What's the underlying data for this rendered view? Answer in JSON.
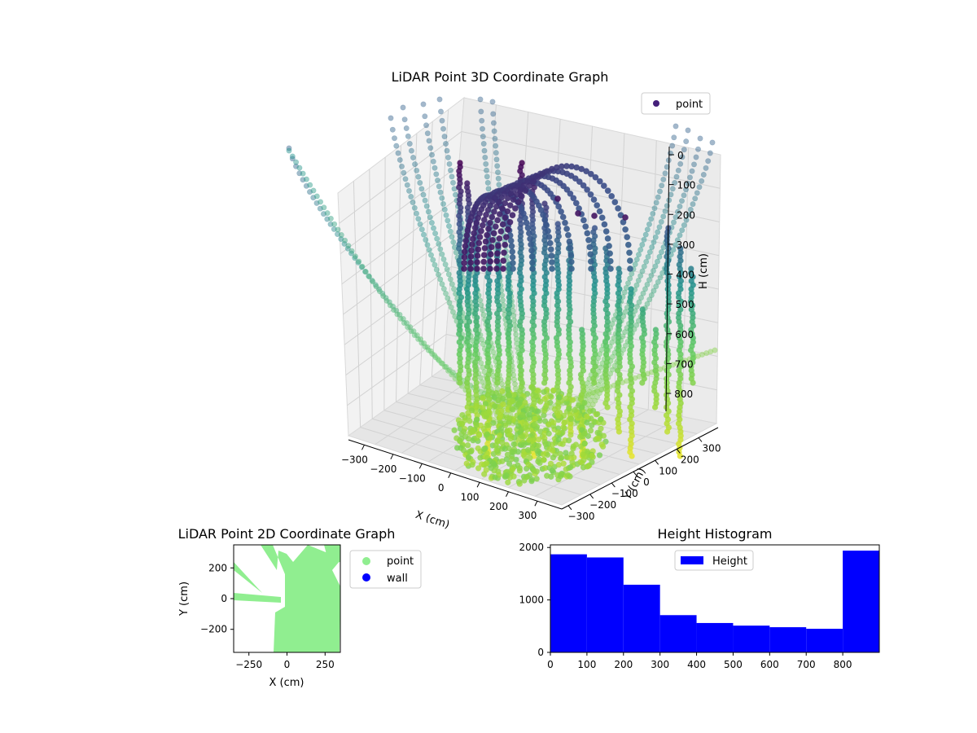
{
  "chart_data": [
    {
      "type": "scatter3d",
      "title": "LiDAR Point 3D Coordinate Graph",
      "xlabel": "X (cm)",
      "ylabel": "Y (cm)",
      "zlabel": "H (cm)",
      "x_ticks": [
        "−300",
        "−200",
        "−100",
        "0",
        "100",
        "200",
        "300"
      ],
      "y_ticks": [
        "−300",
        "−200",
        "−100",
        "0",
        "100",
        "200",
        "300"
      ],
      "z_ticks": [
        "0",
        "100",
        "200",
        "300",
        "400",
        "500",
        "600",
        "700",
        "800"
      ],
      "z_inverted": true,
      "colormap": "viridis",
      "legend": {
        "placement": "top-right",
        "entries": [
          {
            "label": "point",
            "color": "#45207a"
          }
        ]
      },
      "grid": true
    },
    {
      "type": "scatter",
      "title": "LiDAR Point 2D Coordinate Graph",
      "xlabel": "X (cm)",
      "ylabel": "Y (cm)",
      "xlim": [
        -350,
        350
      ],
      "ylim": [
        -350,
        350
      ],
      "x_ticks": [
        "−250",
        "0",
        "250"
      ],
      "y_ticks": [
        "200",
        "0",
        "−200"
      ],
      "legend": {
        "placement": "outside-right",
        "entries": [
          {
            "label": "point",
            "color": "#90ee90"
          },
          {
            "label": "wall",
            "color": "#0000ff"
          }
        ]
      },
      "series": [
        {
          "name": "point",
          "color": "#90ee90"
        },
        {
          "name": "wall",
          "color": "#0000ff"
        }
      ]
    },
    {
      "type": "bar",
      "title": "Height Histogram",
      "xlim": [
        0,
        900
      ],
      "ylim": [
        0,
        2050
      ],
      "x_ticks": [
        "0",
        "100",
        "200",
        "300",
        "400",
        "500",
        "600",
        "700",
        "800"
      ],
      "y_ticks": [
        "0",
        "1000",
        "2000"
      ],
      "legend": {
        "placement": "top-center",
        "entries": [
          {
            "label": "Height",
            "color": "#0000ff"
          }
        ]
      },
      "color": "#0000ff",
      "series": [
        {
          "name": "Height",
          "bins": [
            {
              "x0": 0,
              "x1": 100,
              "value": 1870
            },
            {
              "x0": 100,
              "x1": 200,
              "value": 1810
            },
            {
              "x0": 200,
              "x1": 300,
              "value": 1290
            },
            {
              "x0": 300,
              "x1": 400,
              "value": 710
            },
            {
              "x0": 400,
              "x1": 500,
              "value": 560
            },
            {
              "x0": 500,
              "x1": 600,
              "value": 510
            },
            {
              "x0": 600,
              "x1": 700,
              "value": 480
            },
            {
              "x0": 700,
              "x1": 800,
              "value": 450
            },
            {
              "x0": 800,
              "x1": 900,
              "value": 1940
            }
          ]
        }
      ]
    }
  ]
}
